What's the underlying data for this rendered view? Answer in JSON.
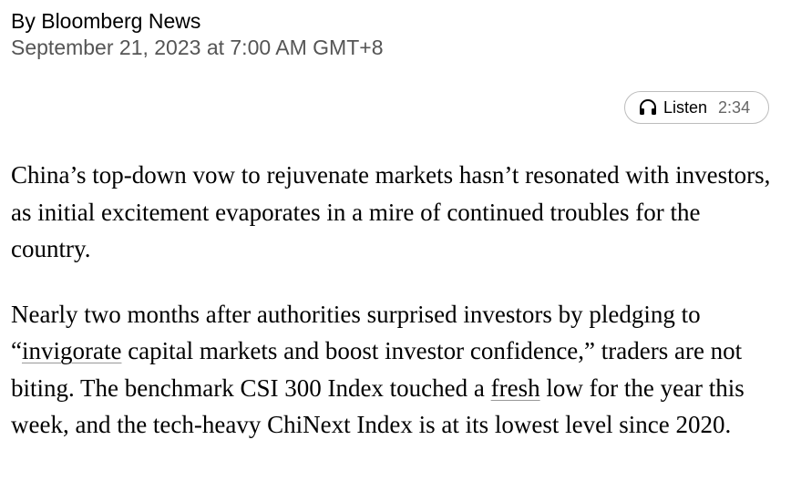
{
  "byline": {
    "author": "By Bloomberg News",
    "date": "September 21, 2023 at 7:00 AM GMT+8"
  },
  "listen": {
    "icon": "headphones-icon",
    "label": "Listen",
    "duration": "2:34"
  },
  "article": {
    "paragraph1": "China’s top-down vow to rejuvenate markets hasn’t resonated with investors, as initial excitement evaporates in a mire of continued troubles for the country.",
    "paragraph2": {
      "part1": "Nearly two months after authorities surprised investors by pledging to “",
      "link1": "invigorate",
      "part2": " capital markets and boost investor confidence,” traders are not biting. The benchmark CSI 300 Index touched a ",
      "link2": "fresh",
      "part3": " low for the year this week, and the tech-heavy ChiNext Index is at its lowest level since 2020."
    }
  }
}
